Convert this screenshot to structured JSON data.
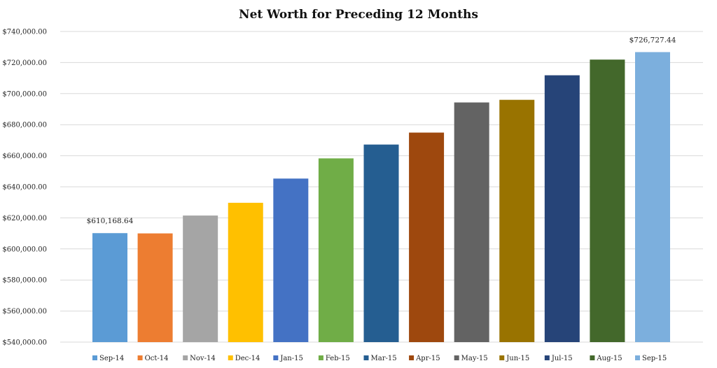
{
  "chart_data": {
    "type": "bar",
    "title": "Net Worth for Preceding 12 Months",
    "xlabel": "",
    "ylabel": "",
    "ylim": [
      540000,
      740000
    ],
    "yticks": [
      540000,
      560000,
      580000,
      600000,
      620000,
      640000,
      660000,
      680000,
      700000,
      720000,
      740000
    ],
    "ytick_labels": [
      "$540,000.00",
      "$560,000.00",
      "$580,000.00",
      "$600,000.00",
      "$620,000.00",
      "$640,000.00",
      "$660,000.00",
      "$680,000.00",
      "$700,000.00",
      "$720,000.00",
      "$740,000.00"
    ],
    "grid": true,
    "legend_position": "bottom",
    "categories": [
      "Sep-14",
      "Oct-14",
      "Nov-14",
      "Dec-14",
      "Jan-15",
      "Feb-15",
      "Mar-15",
      "Apr-15",
      "May-15",
      "Jun-15",
      "Jul-15",
      "Aug-15",
      "Sep-15"
    ],
    "values": [
      610168.64,
      610000,
      621500,
      629700,
      645300,
      658300,
      667200,
      674900,
      694300,
      696000,
      711800,
      721900,
      726727.44
    ],
    "colors": [
      "#5b9bd5",
      "#ed7d31",
      "#a5a5a5",
      "#ffc000",
      "#4472c4",
      "#70ad47",
      "#255e91",
      "#9e480e",
      "#636363",
      "#997300",
      "#264478",
      "#43682b",
      "#7cafdd"
    ],
    "data_labels": [
      {
        "index": 0,
        "text": "$610,168.64"
      },
      {
        "index": 12,
        "text": "$726,727.44"
      }
    ]
  }
}
